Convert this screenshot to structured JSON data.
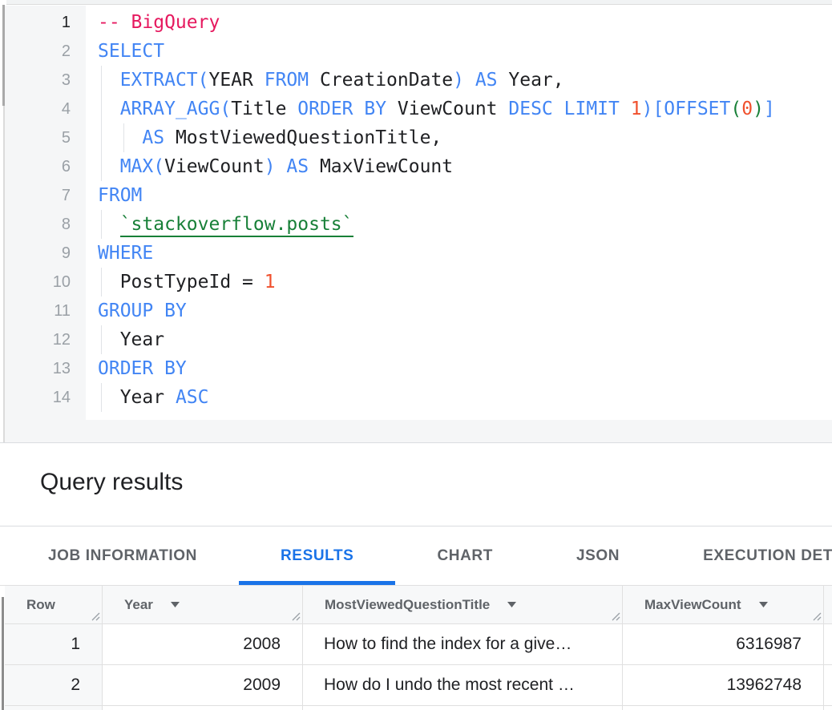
{
  "colors": {
    "keyword": "#4285F4",
    "identifier": "#202124",
    "comment": "#E6195F",
    "number": "#F0502D",
    "string_green": "#188038",
    "line_number": "#9AA0A6",
    "line_number_active": "#202124",
    "tab_active": "#1A73E8",
    "tab_inactive": "#5F6368",
    "table_header_text": "#5F6368",
    "table_border": "#E0E0E0",
    "divider": "#DADCE0",
    "gutter_bg": "#F5F6F7",
    "table_header_bg": "#F7F8F9"
  },
  "editor": {
    "lines": [
      {
        "n": "1",
        "active": true,
        "guides": [],
        "tokens": [
          [
            "cm",
            "-- BigQuery"
          ]
        ]
      },
      {
        "n": "2",
        "guides": [],
        "tokens": [
          [
            "kw",
            "SELECT"
          ]
        ]
      },
      {
        "n": "3",
        "guides": [
          0
        ],
        "tokens": [
          [
            "id",
            "  "
          ],
          [
            "kw",
            "EXTRACT("
          ],
          [
            "id",
            "YEAR "
          ],
          [
            "kw",
            "FROM"
          ],
          [
            "id",
            " CreationDate"
          ],
          [
            "kw",
            ") AS"
          ],
          [
            "id",
            " Year,"
          ]
        ]
      },
      {
        "n": "4",
        "guides": [
          0
        ],
        "tokens": [
          [
            "id",
            "  "
          ],
          [
            "kw",
            "ARRAY_AGG("
          ],
          [
            "id",
            "Title "
          ],
          [
            "kw",
            "ORDER BY"
          ],
          [
            "id",
            " ViewCount "
          ],
          [
            "kw",
            "DESC LIMIT"
          ],
          [
            "id",
            " "
          ],
          [
            "num",
            "1"
          ],
          [
            "kw",
            ")[OFFSET"
          ],
          [
            "grn",
            "("
          ],
          [
            "num",
            "0"
          ],
          [
            "grn",
            ")"
          ],
          [
            "kw",
            "]"
          ]
        ]
      },
      {
        "n": "5",
        "guides": [
          0,
          1
        ],
        "tokens": [
          [
            "id",
            "    "
          ],
          [
            "kw",
            "AS"
          ],
          [
            "id",
            " MostViewedQuestionTitle,"
          ]
        ]
      },
      {
        "n": "6",
        "guides": [
          0
        ],
        "tokens": [
          [
            "id",
            "  "
          ],
          [
            "kw",
            "MAX("
          ],
          [
            "id",
            "ViewCount"
          ],
          [
            "kw",
            ") AS"
          ],
          [
            "id",
            " MaxViewCount"
          ]
        ]
      },
      {
        "n": "7",
        "guides": [],
        "tokens": [
          [
            "kw",
            "FROM"
          ]
        ]
      },
      {
        "n": "8",
        "guides": [
          0
        ],
        "tokens": [
          [
            "id",
            "  "
          ],
          [
            "tbl",
            "`stackoverflow.posts`"
          ]
        ]
      },
      {
        "n": "9",
        "guides": [],
        "tokens": [
          [
            "kw",
            "WHERE"
          ]
        ]
      },
      {
        "n": "10",
        "guides": [
          0
        ],
        "tokens": [
          [
            "id",
            "  PostTypeId = "
          ],
          [
            "num",
            "1"
          ]
        ]
      },
      {
        "n": "11",
        "guides": [],
        "tokens": [
          [
            "kw",
            "GROUP BY"
          ]
        ]
      },
      {
        "n": "12",
        "guides": [
          0
        ],
        "tokens": [
          [
            "id",
            "  Year"
          ]
        ]
      },
      {
        "n": "13",
        "guides": [],
        "tokens": [
          [
            "kw",
            "ORDER BY"
          ]
        ]
      },
      {
        "n": "14",
        "guides": [
          0
        ],
        "tokens": [
          [
            "id",
            "  Year "
          ],
          [
            "kw",
            "ASC"
          ]
        ]
      }
    ]
  },
  "results_panel": {
    "title": "Query results"
  },
  "tabs": [
    {
      "label": "JOB INFORMATION",
      "active": false
    },
    {
      "label": "RESULTS",
      "active": true
    },
    {
      "label": "CHART",
      "active": false
    },
    {
      "label": "JSON",
      "active": false
    },
    {
      "label": "EXECUTION DETAILS",
      "active": false
    }
  ],
  "table": {
    "columns": [
      {
        "label": "Row",
        "sortable": false
      },
      {
        "label": "Year",
        "sortable": true
      },
      {
        "label": "MostViewedQuestionTitle",
        "sortable": true
      },
      {
        "label": "MaxViewCount",
        "sortable": true
      }
    ],
    "rows": [
      [
        "1",
        "2008",
        "How to find the index for a give…",
        "6316987"
      ],
      [
        "2",
        "2009",
        "How do I undo the most recent …",
        "13962748"
      ]
    ]
  }
}
